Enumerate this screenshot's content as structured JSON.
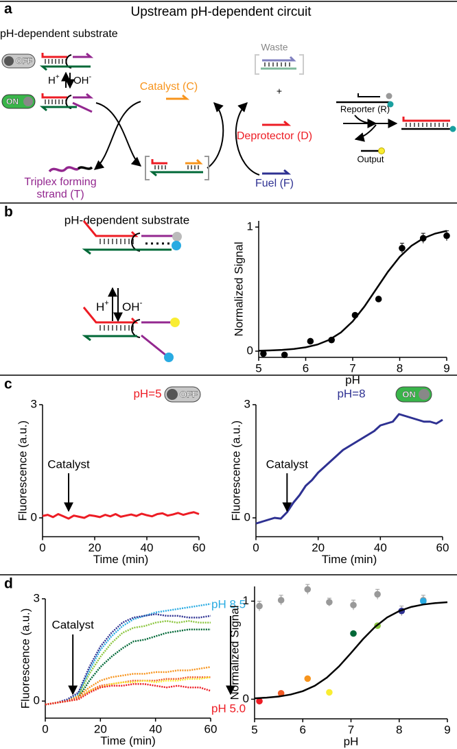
{
  "panel_labels": [
    "a",
    "b",
    "c",
    "d"
  ],
  "panel_a": {
    "title": "Upstream pH-dependent circuit",
    "substrate_label": "pH-dependent substrate",
    "toggle_off": "OFF",
    "toggle_on": "ON",
    "proton": {
      "base": "H",
      "sup": "+"
    },
    "hydroxide": {
      "base": "OH",
      "sup": "-"
    },
    "catalyst": "Catalyst (C)",
    "waste": "Waste",
    "plus": "+",
    "deprotector": "Deprotector (D)",
    "fuel": "Fuel (F)",
    "triplex": [
      "Triplex forming",
      "strand (T)"
    ],
    "reporter": "Reporter (R)",
    "output": "Output"
  },
  "panel_b": {
    "title": "pH-dependent substrate",
    "proton": {
      "base": "H",
      "sup": "+"
    },
    "hydroxide": {
      "base": "OH",
      "sup": "-"
    }
  },
  "chart_data": [
    {
      "type": "scatter",
      "xlabel": "pH",
      "ylabel": "Normalized Signal",
      "xlim": [
        5,
        9
      ],
      "xticks": [
        5,
        6,
        7,
        8,
        9
      ],
      "ylim": [
        -0.05,
        1.05
      ],
      "yticks": [
        0,
        1
      ],
      "series": [
        {
          "mode": "markers",
          "color": "#000000",
          "x": [
            5.1,
            5.55,
            6.1,
            6.55,
            7.05,
            7.55,
            8.05,
            8.5,
            9
          ],
          "values": [
            -0.02,
            -0.03,
            0.08,
            0.09,
            0.29,
            0.42,
            0.83,
            0.91,
            0.93
          ],
          "errors": [
            0.01,
            0.01,
            0.01,
            0.01,
            0.01,
            0.01,
            0.04,
            0.04,
            0.04
          ]
        },
        {
          "mode": "line",
          "color": "#000000",
          "x": [
            5,
            5.25,
            5.5,
            5.75,
            6,
            6.25,
            6.5,
            6.75,
            7,
            7.25,
            7.5,
            7.75,
            8,
            8.25,
            8.5,
            8.75,
            9
          ],
          "values": [
            0.003,
            0.006,
            0.01,
            0.018,
            0.031,
            0.053,
            0.091,
            0.151,
            0.24,
            0.36,
            0.5,
            0.64,
            0.76,
            0.849,
            0.909,
            0.947,
            0.969
          ]
        }
      ]
    },
    {
      "type": "line",
      "title": "pH=5",
      "title_color": "#ed1c24",
      "toggle": {
        "label": "OFF",
        "on": false
      },
      "annotation": {
        "text": "Catalyst",
        "x": 10
      },
      "xlabel": "Time (min)",
      "ylabel": "Fluorescence (a.u.)",
      "xlim": [
        0,
        60
      ],
      "xticks": [
        0,
        20,
        40,
        60
      ],
      "ylim": [
        -0.5,
        3
      ],
      "yticks": [
        0,
        3
      ],
      "x": [
        0,
        2,
        4,
        6,
        8,
        10,
        12,
        14,
        16,
        18,
        20,
        22,
        24,
        26,
        28,
        30,
        32,
        34,
        36,
        38,
        40,
        42,
        44,
        46,
        48,
        50,
        52,
        54,
        56,
        58,
        60
      ],
      "series": [
        {
          "color": "#ed1c24",
          "line_style": "solid",
          "values": [
            0.05,
            0.08,
            0.02,
            0.1,
            0.04,
            -0.02,
            0.06,
            0.03,
            0.0,
            0.07,
            0.05,
            0.02,
            0.08,
            0.04,
            0.1,
            0.03,
            0.06,
            0.09,
            0.05,
            0.11,
            0.07,
            0.04,
            0.1,
            0.12,
            0.06,
            0.09,
            0.13,
            0.08,
            0.12,
            0.15,
            0.1
          ]
        }
      ]
    },
    {
      "type": "line",
      "title": "pH=8",
      "title_color": "#2e3192",
      "toggle": {
        "label": "ON",
        "on": true
      },
      "annotation": {
        "text": "Catalyst",
        "x": 10
      },
      "xlabel": "Time (min)",
      "ylabel": "Fluorescence (a.u.)",
      "xlim": [
        0,
        60
      ],
      "xticks": [
        0,
        20,
        40,
        60
      ],
      "ylim": [
        -0.5,
        3
      ],
      "yticks": [
        0,
        3
      ],
      "x": [
        0,
        2,
        4,
        6,
        8,
        10,
        12,
        14,
        16,
        18,
        20,
        22,
        24,
        26,
        28,
        30,
        32,
        34,
        36,
        38,
        40,
        42,
        44,
        46,
        48,
        50,
        52,
        54,
        56,
        58,
        60
      ],
      "series": [
        {
          "color": "#2e3192",
          "line_style": "solid",
          "values": [
            -0.15,
            -0.1,
            -0.05,
            0.0,
            -0.02,
            0.15,
            0.4,
            0.6,
            0.85,
            1.0,
            1.2,
            1.35,
            1.5,
            1.65,
            1.8,
            1.9,
            2.0,
            2.1,
            2.2,
            2.3,
            2.45,
            2.5,
            2.55,
            2.75,
            2.7,
            2.65,
            2.6,
            2.55,
            2.55,
            2.5,
            2.6
          ]
        }
      ]
    },
    {
      "type": "line",
      "annotation": {
        "text": "Catalyst",
        "x": 10
      },
      "annotations": [
        {
          "text": "pH 8.5",
          "color": "#29abe2"
        },
        {
          "text": "pH 5.0",
          "color": "#ed1c24"
        }
      ],
      "xlabel": "Time (min)",
      "ylabel": "Fluorescence (a.u.)",
      "xlim": [
        0,
        60
      ],
      "xticks": [
        0,
        20,
        40,
        60
      ],
      "ylim": [
        -0.5,
        3
      ],
      "yticks": [
        0,
        3
      ],
      "x": [
        0,
        4,
        8,
        12,
        16,
        20,
        24,
        28,
        32,
        36,
        40,
        44,
        48,
        52,
        56,
        60
      ],
      "series": [
        {
          "color": "#29abe2",
          "line_style": "dotted",
          "values": [
            -0.1,
            -0.05,
            0.0,
            0.2,
            0.9,
            1.5,
            1.9,
            2.2,
            2.4,
            2.5,
            2.6,
            2.65,
            2.7,
            2.75,
            2.8,
            2.85
          ]
        },
        {
          "color": "#2e3192",
          "line_style": "dotted",
          "values": [
            -0.1,
            -0.05,
            0.05,
            0.25,
            1.0,
            1.6,
            2.0,
            2.3,
            2.45,
            2.5,
            2.55,
            2.5,
            2.5,
            2.45,
            2.45,
            2.5
          ]
        },
        {
          "color": "#8cc63f",
          "line_style": "dotted",
          "values": [
            -0.1,
            -0.05,
            0.0,
            0.15,
            0.8,
            1.3,
            1.7,
            2.0,
            2.15,
            2.2,
            2.3,
            2.35,
            2.3,
            2.35,
            2.3,
            2.3
          ]
        },
        {
          "color": "#006837",
          "line_style": "dotted",
          "values": [
            -0.1,
            -0.05,
            0.0,
            0.1,
            0.6,
            1.0,
            1.3,
            1.55,
            1.75,
            1.8,
            1.9,
            2.0,
            2.05,
            2.1,
            2.1,
            2.1
          ]
        },
        {
          "color": "#f7941d",
          "line_style": "dotted",
          "values": [
            -0.1,
            -0.05,
            0.0,
            0.15,
            0.4,
            0.6,
            0.7,
            0.75,
            0.8,
            0.8,
            0.85,
            0.85,
            0.9,
            0.9,
            0.95,
            1.0
          ]
        },
        {
          "color": "#f15a24",
          "line_style": "dotted",
          "values": [
            -0.1,
            -0.05,
            0.0,
            0.1,
            0.3,
            0.45,
            0.5,
            0.55,
            0.6,
            0.6,
            0.6,
            0.65,
            0.65,
            0.7,
            0.7,
            0.7
          ]
        },
        {
          "color": "#f9ed32",
          "line_style": "dotted",
          "values": [
            -0.1,
            -0.05,
            0.0,
            0.05,
            0.3,
            0.4,
            0.5,
            0.55,
            0.55,
            0.6,
            0.55,
            0.6,
            0.6,
            0.65,
            0.65,
            0.7
          ]
        },
        {
          "color": "#ed1c24",
          "line_style": "dotted",
          "values": [
            -0.1,
            -0.05,
            0.0,
            0.05,
            0.25,
            0.4,
            0.45,
            0.45,
            0.5,
            0.5,
            0.45,
            0.4,
            0.45,
            0.4,
            0.4,
            0.3
          ]
        }
      ]
    },
    {
      "type": "scatter",
      "xlabel": "pH",
      "ylabel": "Normalized Signal",
      "xlim": [
        5,
        9
      ],
      "xticks": [
        5,
        6,
        7,
        8,
        9
      ],
      "ylim": [
        -0.2,
        1.15
      ],
      "yticks": [
        0,
        1
      ],
      "series": [
        {
          "mode": "markers",
          "color": "#999999",
          "x": [
            5.1,
            5.55,
            6.1,
            6.55,
            7.05,
            7.55,
            8.05,
            8.5
          ],
          "values": [
            0.95,
            1.01,
            1.12,
            0.99,
            0.96,
            1.07,
            0.9,
            1.01
          ],
          "errors": [
            0.05,
            0.05,
            0.05,
            0.04,
            0.05,
            0.05,
            0.05,
            0.05
          ]
        },
        {
          "mode": "markers",
          "colors": [
            "#ed1c24",
            "#f15a24",
            "#f7941d",
            "#f9ed32",
            "#006837",
            "#8cc63f",
            "#2e3192",
            "#29abe2"
          ],
          "x": [
            5.1,
            5.55,
            6.1,
            6.55,
            7.05,
            7.55,
            8.05,
            8.5
          ],
          "values": [
            -0.02,
            0.06,
            0.21,
            0.07,
            0.67,
            0.75,
            0.9,
            1.0
          ]
        },
        {
          "mode": "line",
          "color": "#000000",
          "x": [
            5,
            5.25,
            5.5,
            5.75,
            6,
            6.25,
            6.5,
            6.75,
            7,
            7.25,
            7.5,
            7.75,
            8,
            8.25,
            8.5,
            8.75,
            9
          ],
          "values": [
            0.009,
            0.016,
            0.027,
            0.048,
            0.082,
            0.137,
            0.22,
            0.334,
            0.471,
            0.613,
            0.738,
            0.834,
            0.899,
            0.941,
            0.966,
            0.98,
            0.989
          ]
        }
      ]
    }
  ]
}
